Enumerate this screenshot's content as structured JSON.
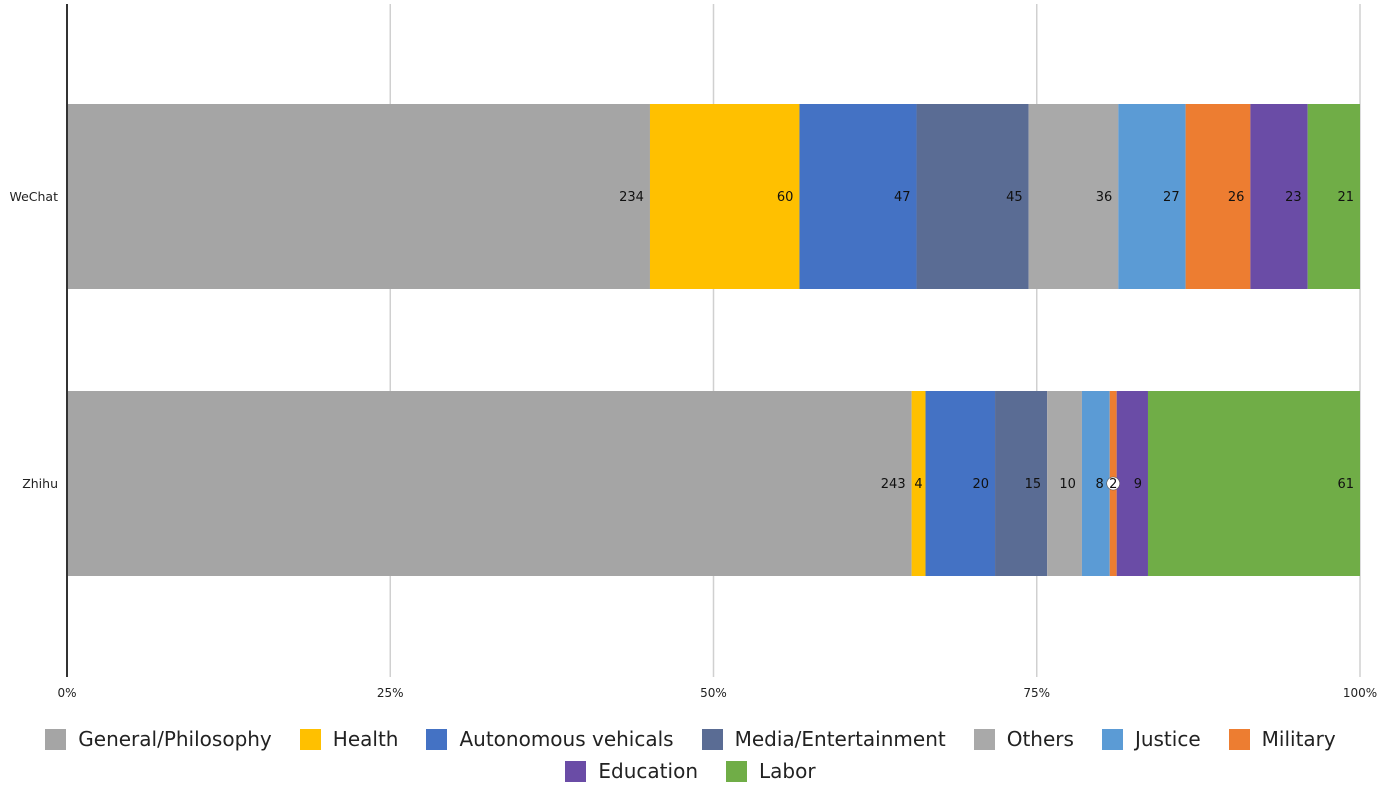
{
  "chart_data": {
    "type": "bar",
    "orientation": "horizontal",
    "stacked": "percent",
    "categories": [
      "WeChat",
      "Zhihu"
    ],
    "series": [
      {
        "name": "General/Philosophy",
        "color": "#A5A5A5",
        "values": [
          234,
          243
        ]
      },
      {
        "name": "Health",
        "color": "#FFC000",
        "values": [
          60,
          4
        ]
      },
      {
        "name": "Autonomous vehicals",
        "color": "#4472C4",
        "values": [
          47,
          20
        ]
      },
      {
        "name": "Media/Entertainment",
        "color": "#5A6C94",
        "values": [
          45,
          15
        ]
      },
      {
        "name": "Others",
        "color": "#A9A9A9",
        "values": [
          36,
          10
        ]
      },
      {
        "name": "Justice",
        "color": "#5B9BD5",
        "values": [
          27,
          8
        ]
      },
      {
        "name": "Military",
        "color": "#ED7D31",
        "values": [
          26,
          2
        ]
      },
      {
        "name": "Education",
        "color": "#6A4CA6",
        "values": [
          23,
          9
        ]
      },
      {
        "name": "Labor",
        "color": "#70AD47",
        "values": [
          21,
          61
        ]
      }
    ],
    "xticks": [
      "0%",
      "25%",
      "50%",
      "75%",
      "100%"
    ],
    "xlim": [
      0,
      100
    ],
    "grid": true,
    "legend_position": "bottom"
  }
}
